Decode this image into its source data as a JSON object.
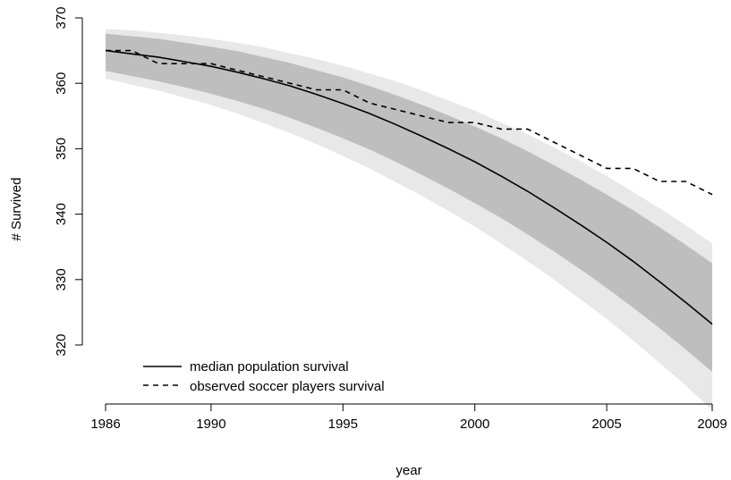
{
  "chart_data": {
    "type": "line",
    "title": "",
    "xlabel": "year",
    "ylabel": "# Survived",
    "xlim": [
      1986,
      2009
    ],
    "ylim": [
      318.5,
      370
    ],
    "x_ticks": [
      1986,
      1990,
      1995,
      2000,
      2005,
      2009
    ],
    "y_ticks": [
      320,
      330,
      340,
      350,
      360,
      370
    ],
    "grid": false,
    "legend_position": "bottom-left",
    "x": [
      1986,
      1987,
      1988,
      1989,
      1990,
      1991,
      1992,
      1993,
      1994,
      1995,
      1996,
      1997,
      1998,
      1999,
      2000,
      2001,
      2002,
      2003,
      2004,
      2005,
      2006,
      2007,
      2008,
      2009
    ],
    "series": [
      {
        "name": "median population survival",
        "style": "solid",
        "color": "#000000",
        "values": [
          365.0,
          364.5,
          364.0,
          363.3,
          362.6,
          361.7,
          360.7,
          359.6,
          358.3,
          356.9,
          355.4,
          353.7,
          351.9,
          350.0,
          348.0,
          345.8,
          343.5,
          341.0,
          338.4,
          335.7,
          332.8,
          329.7,
          326.5,
          323.2
        ]
      },
      {
        "name": "observed soccer players survival",
        "style": "dashed",
        "color": "#000000",
        "values": [
          365,
          365,
          363,
          363,
          363,
          362,
          361,
          360,
          359,
          359,
          357,
          356,
          355,
          354,
          354,
          353,
          353,
          351,
          349,
          347,
          347,
          345,
          345,
          343
        ]
      }
    ],
    "bands": [
      {
        "color": "#e8e8e8",
        "lower": [
          360.7,
          359.8,
          358.9,
          357.8,
          356.7,
          355.4,
          353.9,
          352.4,
          350.7,
          348.9,
          347.0,
          344.9,
          342.8,
          340.5,
          338.1,
          335.5,
          332.8,
          330.0,
          327.0,
          324.0,
          320.7,
          317.3,
          313.8,
          310.1
        ],
        "upper": [
          368.3,
          368.1,
          367.7,
          367.3,
          366.8,
          366.2,
          365.5,
          364.6,
          363.7,
          362.7,
          361.5,
          360.3,
          358.9,
          357.4,
          355.8,
          354.0,
          352.2,
          350.2,
          348.1,
          345.8,
          343.4,
          340.9,
          338.3,
          335.5
        ]
      },
      {
        "color": "#bebebe",
        "lower": [
          361.9,
          361.1,
          360.3,
          359.4,
          358.4,
          357.3,
          356.1,
          354.7,
          353.2,
          351.6,
          349.9,
          348.0,
          346.0,
          343.9,
          341.7,
          339.4,
          336.9,
          334.3,
          331.6,
          328.7,
          325.7,
          322.6,
          319.3,
          315.9
        ],
        "upper": [
          367.6,
          367.2,
          366.8,
          366.2,
          365.6,
          364.9,
          364.0,
          363.1,
          362.0,
          360.9,
          359.6,
          358.2,
          356.7,
          355.1,
          353.4,
          351.6,
          349.6,
          347.5,
          345.3,
          343.0,
          340.6,
          338.0,
          335.3,
          332.5
        ]
      }
    ]
  },
  "colors": {
    "outer_band": "#e8e8e8",
    "inner_band": "#bebebe",
    "line": "#000000"
  }
}
